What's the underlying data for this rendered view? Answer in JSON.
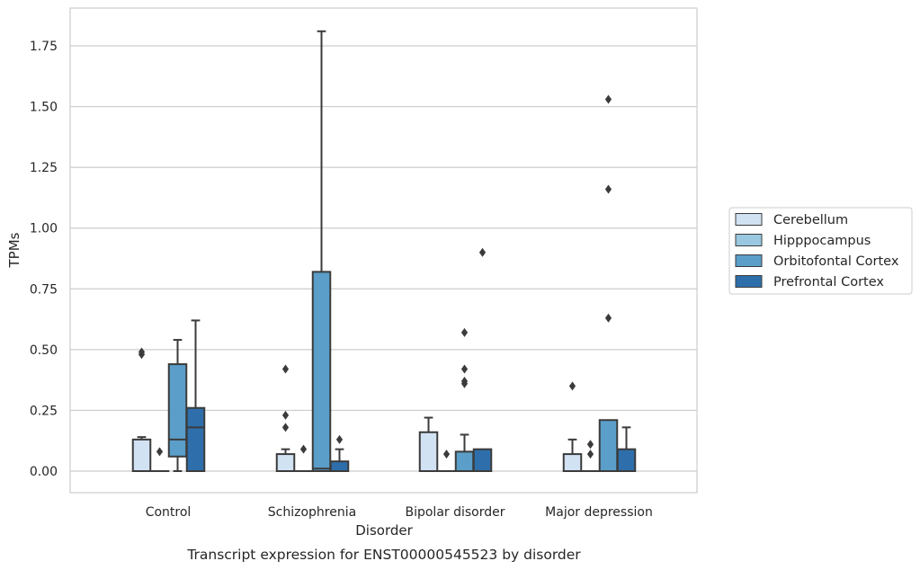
{
  "chart_data": {
    "type": "box",
    "caption": "Transcript expression for ENST00000545523 by disorder",
    "xlabel": "Disorder",
    "ylabel": "TPMs",
    "ylim": [
      -0.09,
      1.9
    ],
    "yticks": [
      "0.00",
      "0.25",
      "0.50",
      "0.75",
      "1.00",
      "1.25",
      "1.50",
      "1.75"
    ],
    "categories": [
      "Control",
      "Schizophrenia",
      "Bipolar disorder",
      "Major depression"
    ],
    "grid": "horizontal",
    "legend_position": "right",
    "series": [
      {
        "name": "Cerebellum",
        "color": "#d1e2f2",
        "boxes": [
          {
            "whislo": 0.0,
            "q1": 0.0,
            "med": 0.0,
            "q3": 0.13,
            "whishi": 0.14,
            "fliers": [
              0.48,
              0.49
            ]
          },
          {
            "whislo": 0.0,
            "q1": 0.0,
            "med": 0.0,
            "q3": 0.07,
            "whishi": 0.09,
            "fliers": [
              0.18,
              0.23,
              0.42
            ]
          },
          {
            "whislo": 0.0,
            "q1": 0.0,
            "med": 0.0,
            "q3": 0.16,
            "whishi": 0.22,
            "fliers": []
          },
          {
            "whislo": 0.0,
            "q1": 0.0,
            "med": 0.0,
            "q3": 0.07,
            "whishi": 0.13,
            "fliers": [
              0.35
            ]
          }
        ]
      },
      {
        "name": "Hipppocampus",
        "color": "#9ac8e0",
        "boxes": [
          {
            "whislo": 0.0,
            "q1": 0.0,
            "med": 0.0,
            "q3": 0.0,
            "whishi": 0.0,
            "fliers": [
              0.08
            ]
          },
          {
            "whislo": 0.0,
            "q1": 0.0,
            "med": 0.0,
            "q3": 0.0,
            "whishi": 0.0,
            "fliers": [
              0.09
            ]
          },
          {
            "whislo": 0.0,
            "q1": 0.0,
            "med": 0.0,
            "q3": 0.0,
            "whishi": 0.0,
            "fliers": [
              0.07
            ]
          },
          {
            "whislo": 0.0,
            "q1": 0.0,
            "med": 0.0,
            "q3": 0.0,
            "whishi": 0.0,
            "fliers": [
              0.07,
              0.11
            ]
          }
        ]
      },
      {
        "name": "Orbitofontal Cortex",
        "color": "#5a9ec9",
        "boxes": [
          {
            "whislo": 0.0,
            "q1": 0.06,
            "med": 0.13,
            "q3": 0.44,
            "whishi": 0.54,
            "fliers": []
          },
          {
            "whislo": 0.0,
            "q1": 0.0,
            "med": 0.01,
            "q3": 0.82,
            "whishi": 1.81,
            "fliers": []
          },
          {
            "whislo": 0.0,
            "q1": 0.0,
            "med": 0.0,
            "q3": 0.08,
            "whishi": 0.15,
            "fliers": [
              0.36,
              0.37,
              0.42,
              0.57
            ]
          },
          {
            "whislo": 0.0,
            "q1": 0.0,
            "med": 0.0,
            "q3": 0.21,
            "whishi": 0.21,
            "fliers": [
              0.63,
              1.16,
              1.53
            ]
          }
        ]
      },
      {
        "name": "Prefrontal Cortex",
        "color": "#2e6fab",
        "boxes": [
          {
            "whislo": 0.0,
            "q1": 0.0,
            "med": 0.18,
            "q3": 0.26,
            "whishi": 0.62,
            "fliers": []
          },
          {
            "whislo": 0.0,
            "q1": 0.0,
            "med": 0.0,
            "q3": 0.04,
            "whishi": 0.09,
            "fliers": [
              0.13
            ]
          },
          {
            "whislo": 0.0,
            "q1": 0.0,
            "med": 0.0,
            "q3": 0.09,
            "whishi": 0.09,
            "fliers": [
              0.9
            ]
          },
          {
            "whislo": 0.0,
            "q1": 0.0,
            "med": 0.0,
            "q3": 0.09,
            "whishi": 0.18,
            "fliers": []
          }
        ]
      }
    ]
  }
}
